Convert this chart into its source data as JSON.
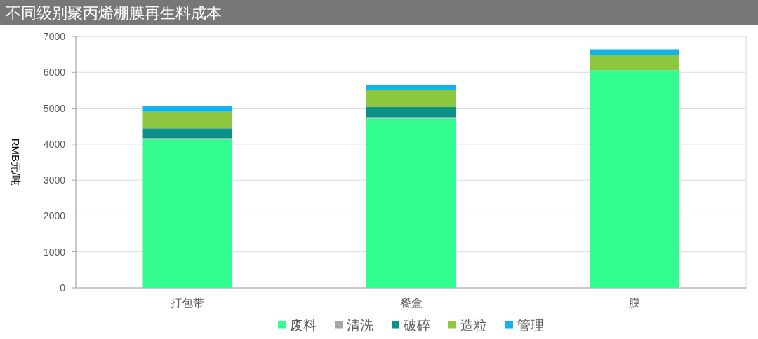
{
  "chart_data": {
    "type": "bar",
    "title": "不同级别聚丙烯棚膜再生料成本",
    "ylabel": "RMB元/吨",
    "categories": [
      "打包带",
      "餐盒",
      "膜"
    ],
    "stacked": true,
    "series": [
      {
        "name": "废料",
        "color": "#33fd8e",
        "values": [
          4130,
          4710,
          6060
        ]
      },
      {
        "name": "清洗",
        "color": "#a6a6a6",
        "values": [
          40,
          40,
          0
        ]
      },
      {
        "name": "破碎",
        "color": "#0a8f8a",
        "values": [
          270,
          280,
          0
        ]
      },
      {
        "name": "造粒",
        "color": "#8dc63f",
        "values": [
          460,
          470,
          430
        ]
      },
      {
        "name": "管理",
        "color": "#12b2ea",
        "values": [
          150,
          150,
          150
        ]
      }
    ],
    "ylim": [
      0,
      7000
    ],
    "yticks": [
      0,
      1000,
      2000,
      3000,
      4000,
      5000,
      6000,
      7000
    ],
    "grid": "y",
    "legend": "bottom"
  }
}
